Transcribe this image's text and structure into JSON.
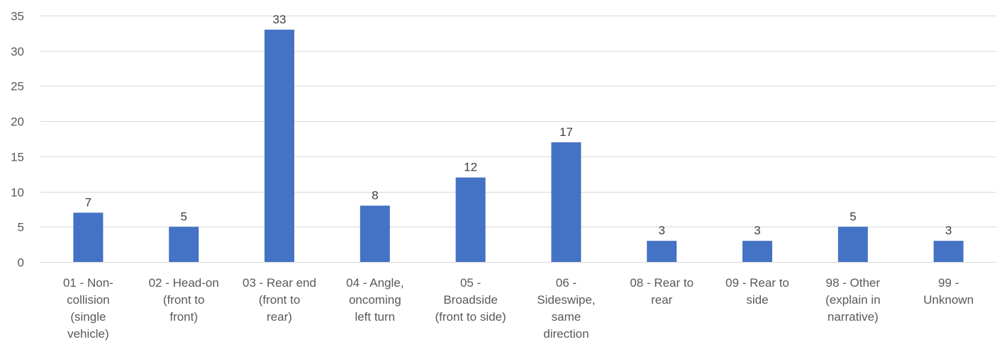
{
  "chart_data": {
    "type": "bar",
    "categories": [
      "01 - Non-collision (single vehicle)",
      "02 - Head-on (front to front)",
      "03 - Rear end (front to rear)",
      "04 - Angle, oncoming left turn",
      "05 - Broadside (front to side)",
      "06 - Sideswipe, same direction",
      "08 - Rear to rear",
      "09 - Rear to side",
      "98 - Other (explain in narrative)",
      "99 - Unknown"
    ],
    "category_lines": [
      [
        "01 - Non-",
        "collision",
        "(single",
        "vehicle)"
      ],
      [
        "02 - Head-on",
        "(front to",
        "front)"
      ],
      [
        "03 - Rear end",
        "(front to",
        "rear)"
      ],
      [
        "04 - Angle,",
        "oncoming",
        "left turn"
      ],
      [
        "05 -",
        "Broadside",
        "(front to side)"
      ],
      [
        "06 -",
        "Sideswipe,",
        "same",
        "direction"
      ],
      [
        "08 - Rear to",
        "rear"
      ],
      [
        "09 - Rear to",
        "side"
      ],
      [
        "98 - Other",
        "(explain in",
        "narrative)"
      ],
      [
        "99 -",
        "Unknown"
      ]
    ],
    "values": [
      7,
      5,
      33,
      8,
      12,
      17,
      3,
      3,
      5,
      3
    ],
    "ylim": [
      0,
      35
    ],
    "yticks": [
      0,
      5,
      10,
      15,
      20,
      25,
      30,
      35
    ],
    "title": "",
    "xlabel": "",
    "ylabel": "",
    "grid": true,
    "data_labels": true,
    "colors": {
      "bar": "#4472c4",
      "grid": "#d9d9d9",
      "text": "#595959"
    }
  }
}
